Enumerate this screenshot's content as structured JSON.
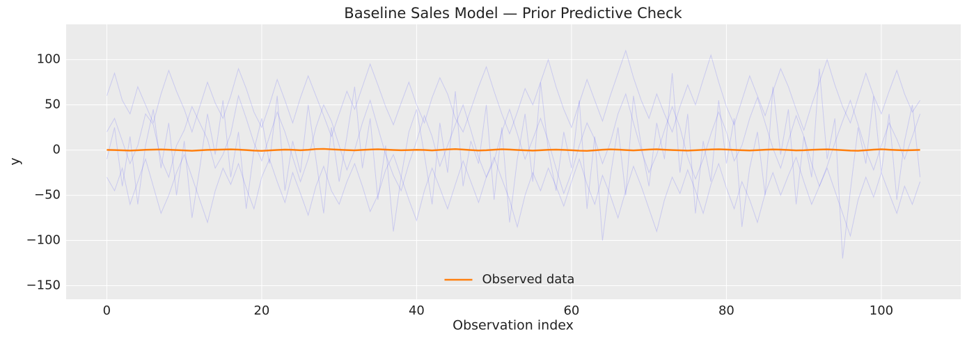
{
  "chart_data": {
    "type": "line",
    "title": "Baseline Sales Model — Prior Predictive Check",
    "x_label": "Observation index",
    "y_label": "y",
    "x": [
      0,
      1,
      2,
      3,
      4,
      5,
      6,
      7,
      8,
      9,
      10,
      11,
      12,
      13,
      14,
      15,
      16,
      17,
      18,
      19,
      20,
      21,
      22,
      23,
      24,
      25,
      26,
      27,
      28,
      29,
      30,
      31,
      32,
      33,
      34,
      35,
      36,
      37,
      38,
      39,
      40,
      41,
      42,
      43,
      44,
      45,
      46,
      47,
      48,
      49,
      50,
      51,
      52,
      53,
      54,
      55,
      56,
      57,
      58,
      59,
      60,
      61,
      62,
      63,
      64,
      65,
      66,
      67,
      68,
      69,
      70,
      71,
      72,
      73,
      74,
      75,
      76,
      77,
      78,
      79,
      80,
      81,
      82,
      83,
      84,
      85,
      86,
      87,
      88,
      89,
      90,
      91,
      92,
      93,
      94,
      95,
      96,
      97,
      98,
      99,
      100,
      101,
      102,
      103,
      104,
      105
    ],
    "series": [
      {
        "name": "Observed data",
        "color": "#ff7f0e",
        "values": [
          0.2,
          0,
          -0.3,
          -0.6,
          -0.2,
          0.3,
          0.5,
          0.7,
          0.4,
          0,
          -0.4,
          -0.8,
          -0.3,
          0.2,
          0.4,
          0.6,
          0.8,
          0.5,
          0,
          -0.6,
          -0.9,
          -0.4,
          0.1,
          0.5,
          0.3,
          -0.2,
          0.3,
          1.0,
          1.2,
          0.8,
          0.4,
          0,
          -0.3,
          0.2,
          0.6,
          0.9,
          0.5,
          0.1,
          -0.2,
          0,
          0.3,
          0.1,
          -0.4,
          0.2,
          0.7,
          1.0,
          0.6,
          0,
          -0.5,
          -0.2,
          0.4,
          0.9,
          0.6,
          0.1,
          -0.3,
          -0.6,
          -0.2,
          0.3,
          0.5,
          0.2,
          -0.2,
          -0.7,
          -0.9,
          -0.3,
          0.4,
          0.8,
          0.5,
          0,
          -0.4,
          0.1,
          0.6,
          0.9,
          0.4,
          0,
          -0.3,
          -0.6,
          -0.2,
          0.3,
          0.7,
          0.9,
          0.6,
          0.2,
          -0.2,
          -0.5,
          -0.1,
          0.4,
          0.7,
          0.5,
          0.1,
          -0.4,
          -0.2,
          0.3,
          0.6,
          0.8,
          0.4,
          -0.1,
          -0.6,
          -0.8,
          -0.2,
          0.5,
          0.9,
          0.4,
          0,
          -0.3,
          -0.1,
          0.2
        ]
      }
    ],
    "prior_samples": {
      "color": "#3030ff",
      "values": [
        [
          20,
          35,
          10,
          -15,
          5,
          40,
          28,
          -10,
          -30,
          5,
          22,
          48,
          30,
          12,
          -20,
          -5,
          18,
          60,
          35,
          8,
          -12,
          15,
          42,
          20,
          -8,
          -35,
          -10,
          25,
          50,
          32,
          5,
          -22,
          0,
          30,
          55,
          25,
          -5,
          -28,
          -45,
          -15,
          10,
          38,
          15,
          -18,
          5,
          28,
          50,
          22,
          -8,
          -30,
          -12,
          20,
          45,
          18,
          -10,
          12,
          35,
          10,
          -20,
          -48,
          -25,
          5,
          30,
          12,
          -15,
          8,
          40,
          62,
          30,
          0,
          -25,
          -5,
          22,
          48,
          25,
          -8,
          -32,
          -10,
          18,
          42,
          20,
          -12,
          5,
          35,
          58,
          30,
          2,
          -20,
          10,
          38,
          15,
          -15,
          -40,
          -18,
          8,
          32,
          55,
          28,
          0,
          -22,
          5,
          30,
          12,
          -10,
          15,
          40
        ],
        [
          -30,
          -45,
          -20,
          -60,
          -35,
          -10,
          -40,
          -70,
          -50,
          -25,
          -5,
          -30,
          -55,
          -80,
          -45,
          -20,
          -38,
          -15,
          -42,
          -65,
          -30,
          -10,
          -35,
          -58,
          -25,
          -48,
          -72,
          -40,
          -18,
          -45,
          -60,
          -35,
          -15,
          -40,
          -68,
          -50,
          -22,
          -5,
          -30,
          -55,
          -78,
          -45,
          -20,
          -42,
          -65,
          -38,
          -12,
          -35,
          -58,
          -30,
          -8,
          -32,
          -55,
          -85,
          -50,
          -25,
          -45,
          -20,
          -40,
          -62,
          -35,
          -10,
          -38,
          -60,
          -28,
          -50,
          -75,
          -45,
          -18,
          -40,
          -65,
          -90,
          -55,
          -30,
          -48,
          -22,
          -45,
          -70,
          -38,
          -15,
          -42,
          -65,
          -35,
          -55,
          -80,
          -48,
          -25,
          -50,
          -28,
          -8,
          -35,
          -60,
          -40,
          -20,
          -45,
          -70,
          -95,
          -55,
          -30,
          -52,
          -25,
          -48,
          -70,
          -40,
          -60,
          -35
        ],
        [
          60,
          85,
          55,
          40,
          70,
          50,
          30,
          62,
          88,
          65,
          45,
          20,
          48,
          75,
          52,
          35,
          60,
          90,
          68,
          42,
          25,
          50,
          78,
          55,
          30,
          58,
          82,
          60,
          38,
          15,
          40,
          65,
          45,
          70,
          95,
          72,
          48,
          28,
          52,
          75,
          50,
          30,
          58,
          80,
          62,
          35,
          20,
          45,
          70,
          92,
          65,
          40,
          18,
          42,
          68,
          50,
          75,
          100,
          70,
          45,
          25,
          52,
          78,
          55,
          32,
          60,
          85,
          110,
          80,
          55,
          35,
          62,
          40,
          20,
          48,
          72,
          50,
          78,
          105,
          75,
          48,
          28,
          55,
          82,
          60,
          38,
          65,
          90,
          70,
          45,
          22,
          50,
          75,
          100,
          72,
          48,
          30,
          58,
          85,
          60,
          40,
          65,
          88,
          62,
          42,
          55
        ],
        [
          -10,
          25,
          -40,
          15,
          -60,
          5,
          45,
          -20,
          30,
          -50,
          10,
          -75,
          -20,
          40,
          -5,
          55,
          -30,
          20,
          -65,
          0,
          35,
          -15,
          60,
          -45,
          10,
          -25,
          50,
          -10,
          -70,
          25,
          -35,
          15,
          70,
          -20,
          35,
          -55,
          5,
          -90,
          -30,
          20,
          45,
          -5,
          -60,
          30,
          -25,
          65,
          -40,
          10,
          -15,
          50,
          -55,
          25,
          -80,
          -10,
          40,
          -35,
          75,
          0,
          -45,
          20,
          -20,
          55,
          -65,
          15,
          -100,
          -30,
          25,
          -50,
          60,
          5,
          -40,
          30,
          -10,
          85,
          -25,
          40,
          -70,
          10,
          -35,
          55,
          -15,
          35,
          -85,
          -20,
          20,
          -50,
          70,
          -5,
          45,
          -60,
          15,
          -30,
          90,
          -10,
          35,
          -120,
          -45,
          25,
          -15,
          60,
          -25,
          40,
          -55,
          10,
          50,
          -30
        ]
      ]
    },
    "xlim": [
      -5.25,
      110.25
    ],
    "ylim": [
      -165,
      139
    ],
    "xticks": [
      0,
      20,
      40,
      60,
      80,
      100
    ],
    "yticks": [
      {
        "value": -150,
        "label": "−150"
      },
      {
        "value": -100,
        "label": "−100"
      },
      {
        "value": -50,
        "label": "−50"
      },
      0,
      50,
      100
    ],
    "grid": true,
    "legend": "lower center"
  }
}
